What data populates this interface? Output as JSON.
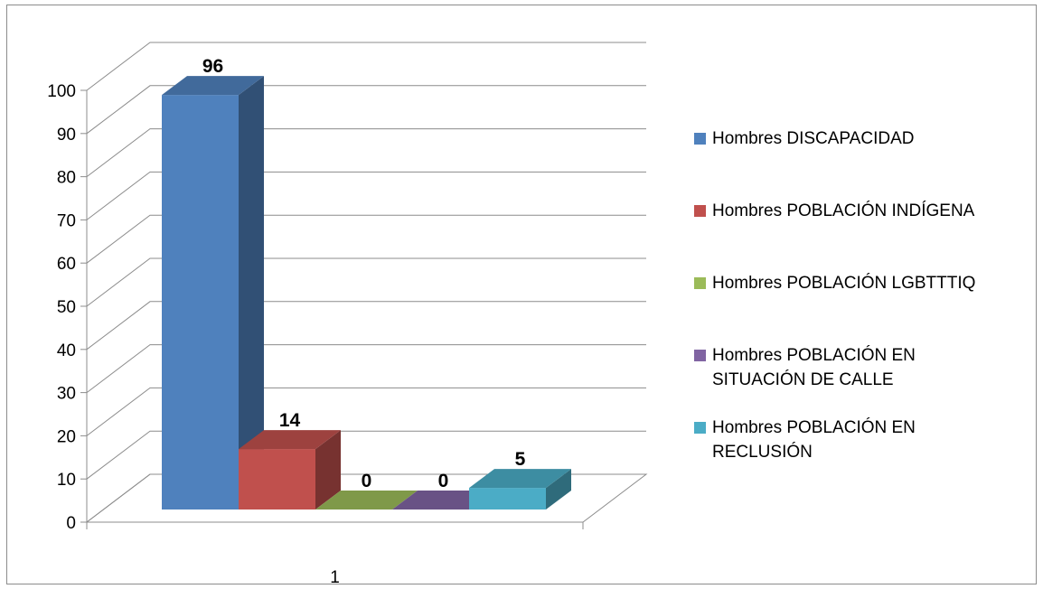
{
  "chart_data": {
    "type": "bar",
    "categories": [
      "1"
    ],
    "series": [
      {
        "name": "Hombres DISCAPACIDAD",
        "values": [
          96
        ],
        "color": "#4F81BD"
      },
      {
        "name": "Hombres POBLACIÓN INDÍGENA",
        "values": [
          14
        ],
        "color": "#C0504D"
      },
      {
        "name": "Hombres POBLACIÓN LGBTTTIQ",
        "values": [
          0
        ],
        "color": "#9BBB59"
      },
      {
        "name": "Hombres POBLACIÓN EN SITUACIÓN DE CALLE",
        "values": [
          0
        ],
        "color": "#8064A2"
      },
      {
        "name": "Hombres POBLACIÓN EN RECLUSIÓN",
        "values": [
          5
        ],
        "color": "#4BACC6"
      }
    ],
    "data_labels": [
      "96",
      "14",
      "0",
      "0",
      "5"
    ],
    "ylim": [
      0,
      100
    ],
    "yticks": [
      "0",
      "10",
      "20",
      "30",
      "40",
      "50",
      "60",
      "70",
      "80",
      "90",
      "100"
    ],
    "grid": true,
    "legend": "right",
    "style": "3d-column"
  },
  "legend": {
    "items": [
      {
        "label": "Hombres DISCAPACIDAD",
        "color": "#4F81BD"
      },
      {
        "label": "Hombres POBLACIÓN INDÍGENA",
        "color": "#C0504D"
      },
      {
        "label": "Hombres POBLACIÓN LGBTTTIQ",
        "color": "#9BBB59"
      },
      {
        "label": "Hombres POBLACIÓN EN SITUACIÓN DE CALLE",
        "color": "#8064A2"
      },
      {
        "label": "Hombres POBLACIÓN EN RECLUSIÓN",
        "color": "#4BACC6"
      }
    ]
  }
}
